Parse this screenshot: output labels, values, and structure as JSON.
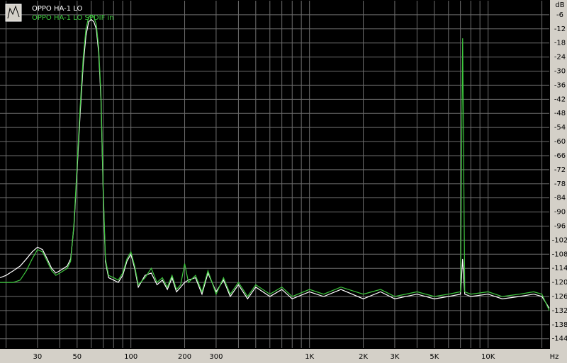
{
  "chart_data": {
    "type": "line",
    "xlabel": "Hz",
    "ylabel": "dB",
    "xscale": "log",
    "grid": true,
    "legend": "top-left",
    "x": [
      18.5,
      20,
      22,
      24,
      26,
      28,
      30,
      32,
      34,
      36,
      38,
      40,
      42,
      44,
      46,
      48,
      50,
      52,
      54,
      56,
      58,
      60,
      62,
      64,
      66,
      68,
      70,
      72,
      75,
      80,
      85,
      90,
      95,
      100,
      105,
      110,
      120,
      130,
      140,
      150,
      160,
      170,
      180,
      190,
      200,
      210,
      230,
      250,
      270,
      300,
      330,
      360,
      400,
      450,
      500,
      600,
      700,
      800,
      1000,
      1200,
      1500,
      2000,
      2500,
      3000,
      4000,
      5000,
      6000,
      7000,
      7200,
      7400,
      8000,
      10000,
      12000,
      15000,
      18000,
      20000,
      22000
    ],
    "series": [
      {
        "name": "OPPO HA-1 LO",
        "color": "#ffffff",
        "values": [
          -118,
          -117,
          -115,
          -113,
          -110,
          -107,
          -105,
          -106,
          -110,
          -114,
          -116,
          -115,
          -114,
          -113,
          -110,
          -96,
          -72,
          -48,
          -28,
          -15,
          -9,
          -8,
          -9,
          -12,
          -22,
          -42,
          -82,
          -111,
          -118,
          -119,
          -120,
          -117,
          -111,
          -108,
          -114,
          -122,
          -117,
          -116,
          -121,
          -119,
          -123,
          -118,
          -124,
          -122,
          -120,
          -119,
          -118,
          -125,
          -116,
          -124,
          -119,
          -126,
          -121,
          -127,
          -122,
          -126,
          -123,
          -127,
          -124,
          -126,
          -123,
          -127,
          -124,
          -127,
          -125,
          -127,
          -126,
          -125,
          -110,
          -125,
          -126,
          -125,
          -127,
          -126,
          -125,
          -126,
          -131
        ]
      },
      {
        "name": "OPPO HA-1 LO SPDIF in",
        "color": "#3ec83e",
        "values": [
          -120,
          -120,
          -120,
          -119,
          -115,
          -110,
          -106,
          -107,
          -111,
          -115,
          -117,
          -116,
          -115,
          -114,
          -111,
          -95,
          -70,
          -45,
          -25,
          -12,
          -7,
          -6,
          -7,
          -10,
          -20,
          -40,
          -80,
          -110,
          -117,
          -118,
          -119,
          -116,
          -110,
          -107,
          -113,
          -121,
          -118,
          -114,
          -120,
          -118,
          -122,
          -117,
          -123,
          -121,
          -112,
          -120,
          -117,
          -124,
          -115,
          -125,
          -118,
          -125,
          -120,
          -126,
          -121,
          -125,
          -122,
          -126,
          -123,
          -125,
          -122,
          -125,
          -123,
          -126,
          -124,
          -126,
          -125,
          -124,
          -16,
          -124,
          -125,
          -124,
          -126,
          -125,
          -124,
          -125,
          -132
        ]
      }
    ],
    "xlim": [
      18.5,
      22000
    ],
    "xticks": [
      30,
      50,
      100,
      200,
      300,
      {
        "value": 1000,
        "label": "1K"
      },
      {
        "value": 2000,
        "label": "2K"
      },
      {
        "value": 3000,
        "label": "3K"
      },
      {
        "value": 5000,
        "label": "5K"
      },
      {
        "value": 10000,
        "label": "10K"
      }
    ],
    "minor_xticks": [
      20,
      40,
      60,
      70,
      80,
      90,
      400,
      500,
      600,
      700,
      800,
      900,
      4000,
      6000,
      7000,
      8000,
      9000,
      20000
    ],
    "ylim": [
      -148,
      0
    ],
    "yticks": [
      -6,
      -12,
      -18,
      -24,
      -30,
      -36,
      -42,
      -48,
      -54,
      -60,
      -66,
      -72,
      -78,
      -84,
      -90,
      -96,
      -102,
      -108,
      -114,
      -120,
      -126,
      -132,
      -138,
      -144
    ]
  }
}
